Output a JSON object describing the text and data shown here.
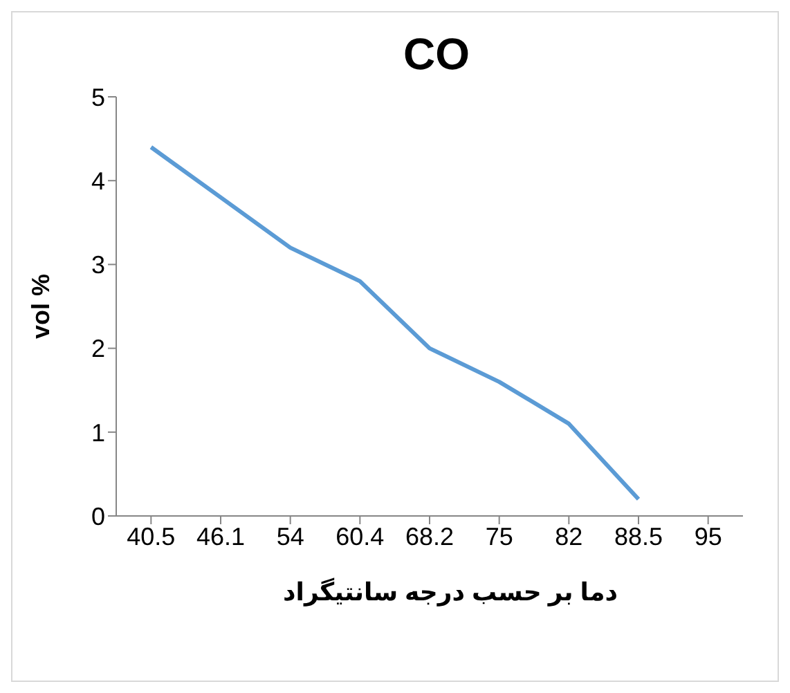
{
  "chart_data": {
    "type": "line",
    "title": "CO",
    "xlabel": "دما بر حسب درجه سانتیگراد",
    "ylabel": "vol %",
    "categories": [
      "40.5",
      "46.1",
      "54",
      "60.4",
      "68.2",
      "75",
      "82",
      "88.5",
      "95"
    ],
    "series": [
      {
        "color": "#5b9bd5",
        "values": [
          4.4,
          3.8,
          3.2,
          2.8,
          2.0,
          1.6,
          1.1,
          0.2,
          null
        ]
      }
    ],
    "ylim": [
      0,
      5
    ],
    "yticks": [
      0,
      1,
      2,
      3,
      4,
      5
    ],
    "grid": false,
    "legend": false,
    "marker": "none",
    "line_style": "solid"
  }
}
